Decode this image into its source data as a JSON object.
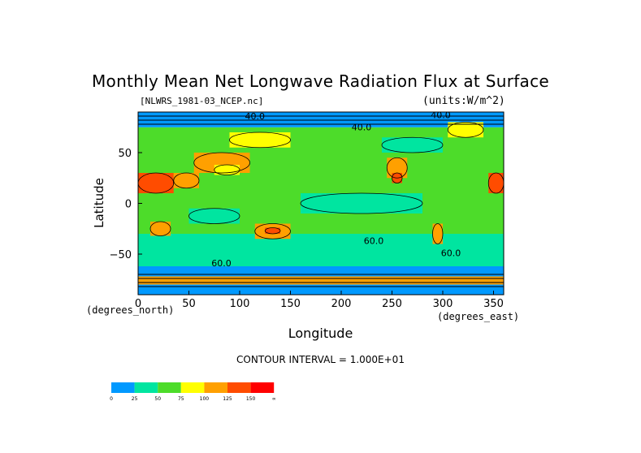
{
  "chart_data": {
    "type": "heatmap",
    "title": "Monthly Mean Net Longwave Radiation Flux at Surface",
    "file_label": "[NLWRS_1981-03_NCEP.nc]",
    "units_label": "(units:W/m^2)",
    "xlabel": "Longitude",
    "ylabel": "Latitude",
    "x_units": "(degrees_east)",
    "y_units": "(degrees_north)",
    "xlim": [
      0,
      360
    ],
    "ylim": [
      -90,
      90
    ],
    "x_ticks": [
      0,
      50,
      100,
      150,
      200,
      250,
      300,
      350
    ],
    "y_ticks": [
      -50,
      0,
      50
    ],
    "contour_interval_text": "CONTOUR INTERVAL = 1.000E+01",
    "contour_labels": [
      {
        "text": "40.0",
        "lon": 115,
        "lat": 83
      },
      {
        "text": "40.0",
        "lon": 220,
        "lat": 72
      },
      {
        "text": "40.0",
        "lon": 298,
        "lat": 84
      },
      {
        "text": "60.0",
        "lon": 232,
        "lat": -40
      },
      {
        "text": "60.0",
        "lon": 308,
        "lat": -52
      },
      {
        "text": "60.0",
        "lon": 82,
        "lat": -62
      }
    ],
    "colorbar": {
      "ticks": [
        "0",
        "25",
        "50",
        "75",
        "100",
        "125",
        "150",
        "∞"
      ],
      "colors": [
        "#0099ff",
        "#00e5a0",
        "#4ddc2a",
        "#ffff00",
        "#ffa000",
        "#ff4c00",
        "#ff0000"
      ]
    },
    "regions": [
      {
        "name": "band-south-mid",
        "lon": [
          0,
          360
        ],
        "lat": [
          -62,
          -30
        ],
        "level": 1
      },
      {
        "name": "band-tropics",
        "lon": [
          0,
          360
        ],
        "lat": [
          -30,
          30
        ],
        "level": 2
      },
      {
        "name": "band-north-mid",
        "lon": [
          0,
          360
        ],
        "lat": [
          30,
          75
        ],
        "level": 2
      },
      {
        "name": "band-arctic",
        "lon": [
          0,
          360
        ],
        "lat": [
          75,
          90
        ],
        "level": 0
      },
      {
        "name": "band-antarctic",
        "lon": [
          0,
          360
        ],
        "lat": [
          -90,
          -62
        ],
        "level": 0
      },
      {
        "name": "pacific-calm",
        "lon": [
          160,
          280
        ],
        "lat": [
          -10,
          10
        ],
        "level": 1
      },
      {
        "name": "indian-calm",
        "lon": [
          50,
          100
        ],
        "lat": [
          -20,
          -5
        ],
        "level": 1
      },
      {
        "name": "africa-sahara",
        "lon": [
          0,
          35
        ],
        "lat": [
          10,
          30
        ],
        "level": 5
      },
      {
        "name": "arabia",
        "lon": [
          35,
          60
        ],
        "lat": [
          15,
          30
        ],
        "level": 4
      },
      {
        "name": "central-asia",
        "lon": [
          55,
          110
        ],
        "lat": [
          30,
          50
        ],
        "level": 4
      },
      {
        "name": "tibet",
        "lon": [
          75,
          100
        ],
        "lat": [
          28,
          38
        ],
        "level": 3
      },
      {
        "name": "north-america",
        "lon": [
          245,
          265
        ],
        "lat": [
          25,
          45
        ],
        "level": 4
      },
      {
        "name": "mexico",
        "lon": [
          250,
          260
        ],
        "lat": [
          20,
          30
        ],
        "level": 5
      },
      {
        "name": "northeast-africa",
        "lon": [
          345,
          360
        ],
        "lat": [
          10,
          30
        ],
        "level": 5
      },
      {
        "name": "south-africa",
        "lon": [
          12,
          32
        ],
        "lat": [
          -32,
          -18
        ],
        "level": 4
      },
      {
        "name": "australia",
        "lon": [
          115,
          150
        ],
        "lat": [
          -35,
          -20
        ],
        "level": 4
      },
      {
        "name": "australia-core",
        "lon": [
          125,
          140
        ],
        "lat": [
          -30,
          -24
        ],
        "level": 5
      },
      {
        "name": "south-america",
        "lon": [
          290,
          300
        ],
        "lat": [
          -40,
          -20
        ],
        "level": 4
      },
      {
        "name": "siberia-east",
        "lon": [
          90,
          150
        ],
        "lat": [
          55,
          70
        ],
        "level": 3
      },
      {
        "name": "canada",
        "lon": [
          240,
          300
        ],
        "lat": [
          50,
          65
        ],
        "level": 1
      },
      {
        "name": "greenland",
        "lon": [
          305,
          340
        ],
        "lat": [
          65,
          80
        ],
        "level": 3
      },
      {
        "name": "antarctic-coast",
        "lon": [
          0,
          360
        ],
        "lat": [
          -80,
          -72
        ],
        "level": 4
      }
    ]
  }
}
